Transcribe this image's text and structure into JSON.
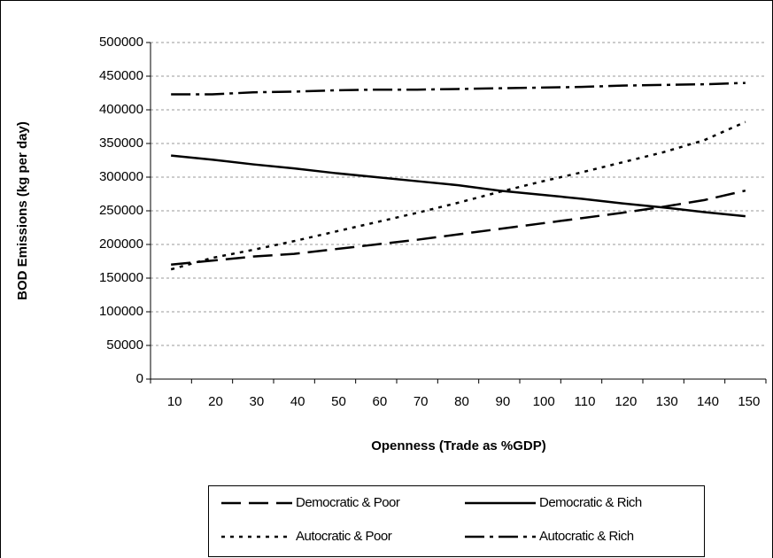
{
  "chart_data": {
    "type": "line",
    "y_label": "BOD Emissions (kg per day)",
    "x_label": "Openness (Trade as %GDP)",
    "categories": [
      "10",
      "20",
      "30",
      "40",
      "50",
      "60",
      "70",
      "80",
      "90",
      "100",
      "110",
      "120",
      "130",
      "140",
      "150"
    ],
    "series": [
      {
        "name": "Democratic & Poor",
        "color": "#000000",
        "dash": "22,9",
        "values": [
          170000,
          176000,
          182000,
          186000,
          193000,
          200000,
          207000,
          215000,
          223000,
          231000,
          239000,
          247000,
          256000,
          266000,
          280000
        ]
      },
      {
        "name": "Democratic & Rich",
        "color": "#000000",
        "dash": "none",
        "values": [
          332000,
          326000,
          319000,
          313000,
          306000,
          300000,
          294000,
          288000,
          280000,
          274000,
          268000,
          261000,
          255000,
          248000,
          242000
        ]
      },
      {
        "name": "Autocratic & Poor",
        "color": "#000000",
        "dash": "4,6",
        "values": [
          163000,
          180000,
          192000,
          205000,
          219000,
          233000,
          247000,
          262000,
          278000,
          293000,
          307000,
          322000,
          337000,
          355000,
          382000
        ]
      },
      {
        "name": "Autocratic & Rich",
        "color": "#000000",
        "dash": "22,6,4,6",
        "values": [
          423000,
          423000,
          426000,
          427000,
          429000,
          430000,
          430000,
          431000,
          432000,
          433000,
          434000,
          436000,
          437000,
          438000,
          440000
        ]
      }
    ],
    "ylim": [
      0,
      500000
    ],
    "yticks": [
      0,
      50000,
      100000,
      150000,
      200000,
      250000,
      300000,
      350000,
      400000,
      450000,
      500000
    ],
    "grid": true,
    "legend": "bottom"
  }
}
